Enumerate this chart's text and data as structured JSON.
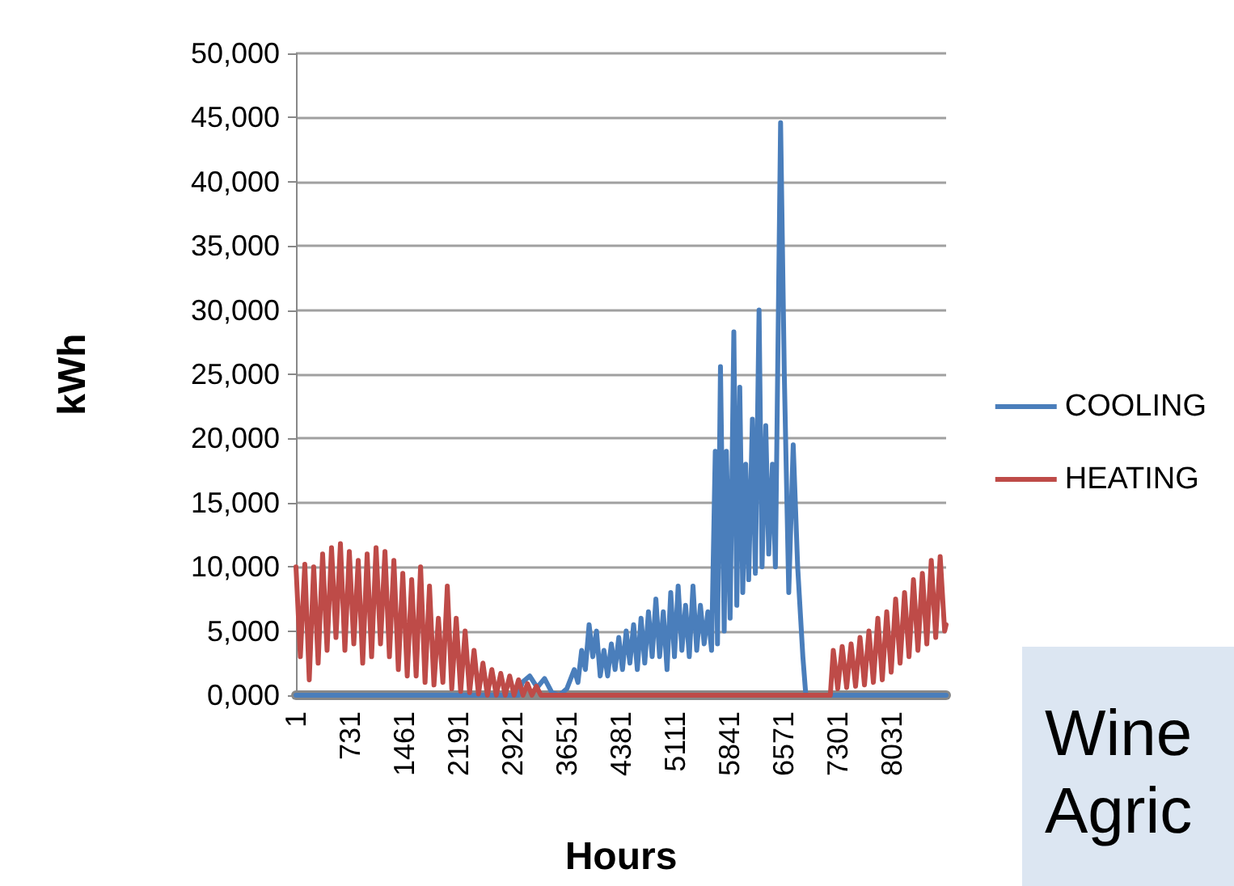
{
  "chart_data": {
    "type": "line",
    "xlabel": "Hours",
    "ylabel": "kWh",
    "annotations": [
      "Wine",
      "Agric"
    ],
    "xlim": [
      1,
      8760
    ],
    "xticks": [
      1,
      731,
      1461,
      2191,
      2921,
      3651,
      4381,
      5111,
      5841,
      6571,
      7301,
      8031
    ],
    "ylim": [
      0,
      50000
    ],
    "yticks": [
      {
        "value": 0,
        "label": "0,000"
      },
      {
        "value": 5000,
        "label": "5,000"
      },
      {
        "value": 10000,
        "label": "10,000"
      },
      {
        "value": 15000,
        "label": "15,000"
      },
      {
        "value": 20000,
        "label": "20,000"
      },
      {
        "value": 25000,
        "label": "25,000"
      },
      {
        "value": 30000,
        "label": "30,000"
      },
      {
        "value": 35000,
        "label": "35,000"
      },
      {
        "value": 40000,
        "label": "40,000"
      },
      {
        "value": 45000,
        "label": "45,000"
      },
      {
        "value": 50000,
        "label": "50,000"
      }
    ],
    "grid": "y",
    "legend": "right",
    "marker": "none",
    "line_style": "solid",
    "series": [
      {
        "name": "COOLING",
        "color": "#4a7ebb",
        "x": [
          1,
          3000,
          3050,
          3150,
          3250,
          3350,
          3450,
          3550,
          3650,
          3750,
          3800,
          3850,
          3900,
          3950,
          4000,
          4050,
          4100,
          4150,
          4200,
          4250,
          4300,
          4350,
          4400,
          4450,
          4500,
          4550,
          4600,
          4650,
          4700,
          4750,
          4800,
          4850,
          4900,
          4950,
          5000,
          5050,
          5100,
          5150,
          5200,
          5250,
          5300,
          5350,
          5400,
          5450,
          5500,
          5550,
          5600,
          5650,
          5680,
          5720,
          5770,
          5800,
          5850,
          5900,
          5940,
          5980,
          6020,
          6060,
          6100,
          6150,
          6190,
          6240,
          6280,
          6330,
          6370,
          6420,
          6460,
          6530,
          6580,
          6640,
          6700,
          6760,
          6830,
          6870,
          8760
        ],
        "values": [
          0,
          0,
          1000,
          1500,
          600,
          1300,
          200,
          0,
          500,
          2000,
          1000,
          3500,
          2000,
          5500,
          3000,
          5000,
          1500,
          3500,
          1500,
          4000,
          2000,
          4500,
          2000,
          5000,
          2500,
          5500,
          2000,
          6000,
          2500,
          6500,
          3000,
          7500,
          3000,
          6500,
          2000,
          8000,
          3000,
          8500,
          3500,
          7000,
          3000,
          8500,
          3500,
          7000,
          4000,
          6500,
          3500,
          19000,
          4000,
          25600,
          5000,
          19000,
          6000,
          28300,
          7000,
          24000,
          8000,
          18000,
          9000,
          21500,
          9500,
          30000,
          10000,
          21000,
          11000,
          18000,
          10000,
          44600,
          25000,
          8000,
          19500,
          10000,
          3000,
          0,
          0
        ]
      },
      {
        "name": "HEATING",
        "color": "#be4b48",
        "x": [
          1,
          60,
          120,
          180,
          240,
          300,
          360,
          420,
          480,
          540,
          600,
          660,
          720,
          780,
          840,
          900,
          960,
          1020,
          1080,
          1140,
          1200,
          1260,
          1320,
          1380,
          1440,
          1500,
          1560,
          1620,
          1680,
          1740,
          1800,
          1860,
          1920,
          1980,
          2040,
          2100,
          2160,
          2220,
          2280,
          2340,
          2400,
          2460,
          2520,
          2580,
          2640,
          2700,
          2760,
          2820,
          2880,
          2940,
          3000,
          3060,
          3120,
          3180,
          3240,
          3300,
          3400,
          7200,
          7240,
          7300,
          7360,
          7420,
          7480,
          7540,
          7600,
          7660,
          7720,
          7780,
          7840,
          7900,
          7960,
          8020,
          8080,
          8140,
          8200,
          8260,
          8320,
          8380,
          8440,
          8500,
          8560,
          8620,
          8680,
          8740,
          8760
        ],
        "values": [
          10000,
          3000,
          10200,
          1200,
          10000,
          2500,
          11000,
          3500,
          11500,
          4500,
          11800,
          3500,
          11200,
          4000,
          10500,
          2500,
          11000,
          3000,
          11500,
          4000,
          11200,
          3000,
          10500,
          2000,
          9500,
          1500,
          9000,
          1500,
          10000,
          1000,
          8500,
          800,
          6000,
          1000,
          8500,
          500,
          6000,
          300,
          5000,
          200,
          3500,
          100,
          2500,
          0,
          2000,
          0,
          1700,
          0,
          1500,
          0,
          1200,
          0,
          900,
          0,
          700,
          0,
          0,
          0,
          3500,
          500,
          3800,
          600,
          4000,
          700,
          4500,
          800,
          5000,
          1000,
          6000,
          1200,
          6500,
          1800,
          7500,
          2500,
          8000,
          3000,
          9000,
          3500,
          9500,
          4000,
          10500,
          4500,
          10800,
          5000,
          5500
        ]
      }
    ]
  }
}
